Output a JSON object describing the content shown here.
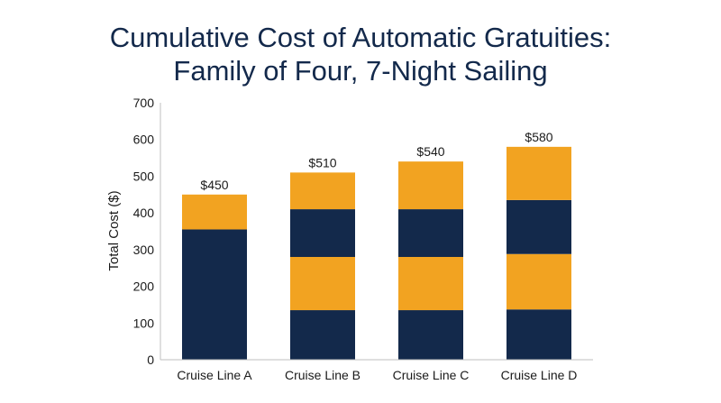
{
  "chart_data": {
    "type": "bar",
    "stacked": true,
    "title_line1": "Cumulative Cost of Automatic Gratuities:",
    "title_line2": "Family of Four, 7-Night Sailing",
    "xlabel": "",
    "ylabel": "Total Cost ($)",
    "ylim": [
      0,
      700
    ],
    "yticks": [
      0,
      100,
      200,
      300,
      400,
      500,
      600,
      700
    ],
    "grid": false,
    "categories": [
      "Cruise Line A",
      "Cruise Line B",
      "Cruise Line C",
      "Cruise Line D"
    ],
    "segments": [
      [
        355,
        95
      ],
      [
        135,
        145,
        130,
        100
      ],
      [
        135,
        145,
        130,
        130
      ],
      [
        137,
        151,
        147,
        145
      ]
    ],
    "segment_colors": [
      "#13294b",
      "#f2a321"
    ],
    "totals": [
      450,
      510,
      540,
      580
    ],
    "total_labels": [
      "$450",
      "$510",
      "$540",
      "$580"
    ]
  }
}
